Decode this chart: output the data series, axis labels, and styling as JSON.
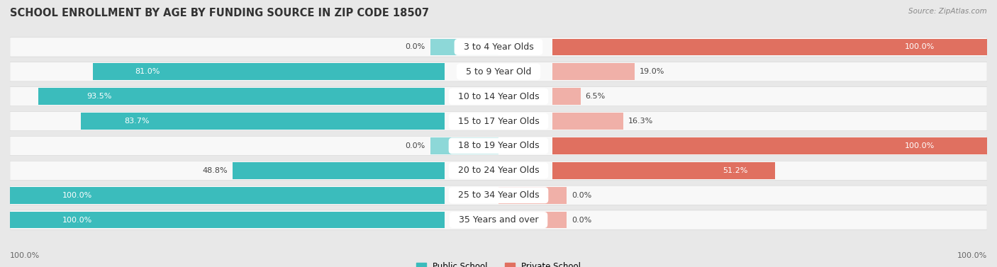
{
  "title": "SCHOOL ENROLLMENT BY AGE BY FUNDING SOURCE IN ZIP CODE 18507",
  "source": "Source: ZipAtlas.com",
  "categories": [
    "3 to 4 Year Olds",
    "5 to 9 Year Old",
    "10 to 14 Year Olds",
    "15 to 17 Year Olds",
    "18 to 19 Year Olds",
    "20 to 24 Year Olds",
    "25 to 34 Year Olds",
    "35 Years and over"
  ],
  "public_pct": [
    0.0,
    81.0,
    93.5,
    83.7,
    0.0,
    48.8,
    100.0,
    100.0
  ],
  "private_pct": [
    100.0,
    19.0,
    6.5,
    16.3,
    100.0,
    51.2,
    0.0,
    0.0
  ],
  "public_color_dark": "#3bbcbc",
  "public_color_light": "#8dd8d8",
  "private_color_dark": "#e07060",
  "private_color_light": "#f0b0a8",
  "background_color": "#e8e8e8",
  "row_bg": "#f8f8f8",
  "title_fontsize": 10.5,
  "label_fontsize": 9,
  "value_fontsize": 8,
  "legend_fontsize": 8.5,
  "pct_threshold": 30
}
